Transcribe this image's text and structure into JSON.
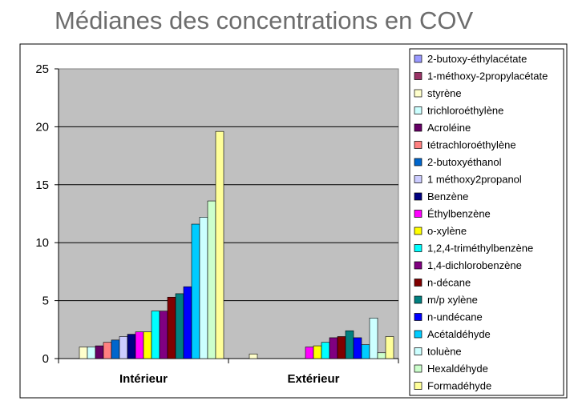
{
  "page": {
    "title": "Médianes des concentrations en COV"
  },
  "chart_data": {
    "type": "bar",
    "title": "Médianes des concentrations en COV",
    "categories": [
      "Intérieur",
      "Extérieur"
    ],
    "ylim": [
      0,
      25
    ],
    "yticks": [
      "0",
      "5",
      "10",
      "15",
      "20",
      "25"
    ],
    "grid": true,
    "legend_position": "right",
    "series": [
      {
        "name": "2-butoxy-éthylacétate",
        "color": "#9999ff",
        "values": [
          0,
          0
        ]
      },
      {
        "name": "1-méthoxy-2propylacétate",
        "color": "#993366",
        "values": [
          0,
          0
        ]
      },
      {
        "name": "styrène",
        "color": "#ffffcc",
        "values": [
          1.0,
          0.4
        ]
      },
      {
        "name": "trichloroéthylène",
        "color": "#ccffff",
        "values": [
          1.0,
          0
        ]
      },
      {
        "name": "Acroléine",
        "color": "#660066",
        "values": [
          1.1,
          0
        ]
      },
      {
        "name": "tétrachloroéthylène",
        "color": "#ff8080",
        "values": [
          1.4,
          0
        ]
      },
      {
        "name": "2-butoxyéthanol",
        "color": "#0066cc",
        "values": [
          1.6,
          0
        ]
      },
      {
        "name": "1 méthoxy2propanol",
        "color": "#ccccff",
        "values": [
          1.9,
          0
        ]
      },
      {
        "name": "Benzène",
        "color": "#000080",
        "values": [
          2.1,
          0
        ]
      },
      {
        "name": "Éthylbenzène",
        "color": "#ff00ff",
        "values": [
          2.3,
          1.0
        ]
      },
      {
        "name": "o-xylène",
        "color": "#ffff00",
        "values": [
          2.3,
          1.1
        ]
      },
      {
        "name": "1,2,4-triméthylbenzène",
        "color": "#00ffff",
        "values": [
          4.1,
          1.4
        ]
      },
      {
        "name": "1,4-dichlorobenzène",
        "color": "#800080",
        "values": [
          4.1,
          1.8
        ]
      },
      {
        "name": "n-décane",
        "color": "#800000",
        "values": [
          5.3,
          1.9
        ]
      },
      {
        "name": "m/p xylène",
        "color": "#008080",
        "values": [
          5.6,
          2.4
        ]
      },
      {
        "name": "n-undécane",
        "color": "#0000ff",
        "values": [
          6.2,
          1.8
        ]
      },
      {
        "name": "Acétaldéhyde",
        "color": "#00ccff",
        "values": [
          11.6,
          1.2
        ]
      },
      {
        "name": "toluène",
        "color": "#ccffff",
        "values": [
          12.2,
          3.5
        ]
      },
      {
        "name": "Hexaldéhyde",
        "color": "#ccffcc",
        "values": [
          13.6,
          0.5
        ]
      },
      {
        "name": "Formadéhyde",
        "color": "#ffff99",
        "values": [
          19.6,
          1.9
        ]
      }
    ]
  }
}
